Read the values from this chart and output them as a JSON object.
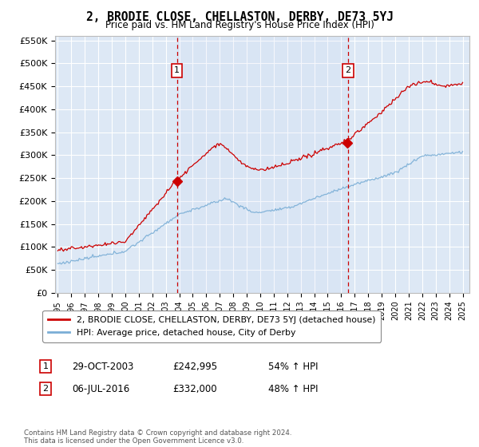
{
  "title": "2, BRODIE CLOSE, CHELLASTON, DERBY, DE73 5YJ",
  "subtitle": "Price paid vs. HM Land Registry's House Price Index (HPI)",
  "ylim": [
    0,
    560000
  ],
  "yticks": [
    0,
    50000,
    100000,
    150000,
    200000,
    250000,
    300000,
    350000,
    400000,
    450000,
    500000,
    550000
  ],
  "ytick_labels": [
    "£0",
    "£50K",
    "£100K",
    "£150K",
    "£200K",
    "£250K",
    "£300K",
    "£350K",
    "£400K",
    "£450K",
    "£500K",
    "£550K"
  ],
  "xmin_year": 1995,
  "xmax_year": 2025,
  "xtick_years": [
    1995,
    1996,
    1997,
    1998,
    1999,
    2000,
    2001,
    2002,
    2003,
    2004,
    2005,
    2006,
    2007,
    2008,
    2009,
    2010,
    2011,
    2012,
    2013,
    2014,
    2015,
    2016,
    2017,
    2018,
    2019,
    2020,
    2021,
    2022,
    2023,
    2024,
    2025
  ],
  "bg_color": "#dde8f5",
  "grid_color": "#ffffff",
  "sale1_year": 2003.83,
  "sale1_price": 242995,
  "sale2_year": 2016.51,
  "sale2_price": 332000,
  "red_line_color": "#cc0000",
  "blue_line_color": "#7aaed6",
  "legend_label_red": "2, BRODIE CLOSE, CHELLASTON, DERBY, DE73 5YJ (detached house)",
  "legend_label_blue": "HPI: Average price, detached house, City of Derby",
  "footer": "Contains HM Land Registry data © Crown copyright and database right 2024.\nThis data is licensed under the Open Government Licence v3.0."
}
